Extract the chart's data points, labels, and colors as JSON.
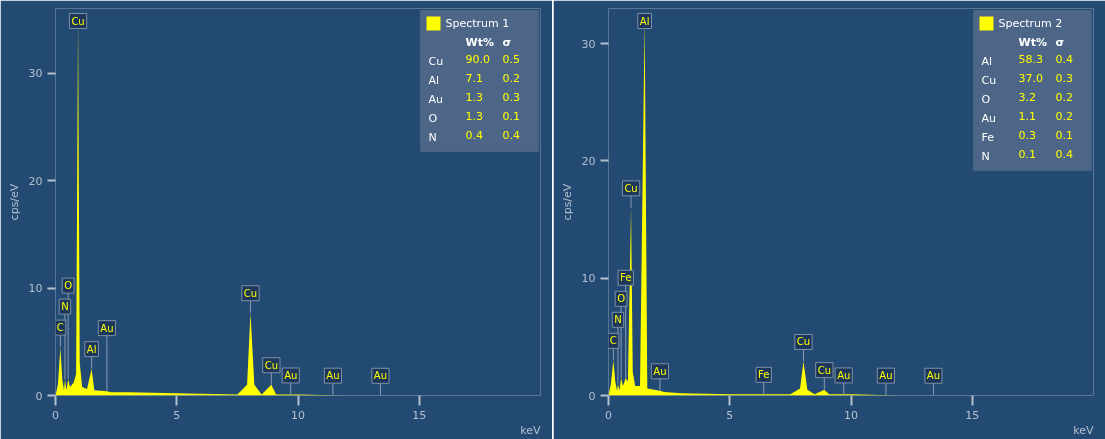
{
  "chart_data": [
    {
      "type": "area",
      "xlabel": "keV",
      "ylabel": "cps/eV",
      "xlim": [
        0,
        20
      ],
      "ylim": [
        0,
        36
      ],
      "xticks": [
        0,
        5,
        10,
        15
      ],
      "yticks": [
        0,
        10,
        20,
        30
      ],
      "grid": false,
      "legend": "top right",
      "series": [
        {
          "name": "Spectrum 1",
          "color": "#ffff00",
          "x": [
            0,
            0.1,
            0.2,
            0.28,
            0.35,
            0.39,
            0.45,
            0.52,
            0.6,
            0.75,
            0.85,
            0.93,
            1.0,
            1.1,
            1.3,
            1.49,
            1.6,
            2.12,
            2.3,
            3,
            5,
            7.5,
            7.9,
            8.04,
            8.2,
            8.5,
            8.9,
            9.1,
            10,
            12,
            15,
            20
          ],
          "values": [
            0,
            1,
            4.5,
            1.5,
            0.5,
            1.5,
            0.5,
            1.5,
            0.8,
            1.2,
            2,
            35,
            3,
            0.8,
            0.6,
            2.5,
            0.5,
            0.4,
            0.3,
            0.3,
            0.2,
            0.1,
            1,
            7.7,
            1,
            0.1,
            1,
            0.1,
            0.1,
            0,
            0,
            0
          ]
        }
      ],
      "annotations": [
        {
          "text": "C",
          "x": 0.2,
          "y": 4.5
        },
        {
          "text": "N",
          "x": 0.39,
          "y": 1.5
        },
        {
          "text": "O",
          "x": 0.52,
          "y": 1.5
        },
        {
          "text": "Cu",
          "x": 0.93,
          "y": 35
        },
        {
          "text": "Al",
          "x": 1.49,
          "y": 2.5
        },
        {
          "text": "Au",
          "x": 2.12,
          "y": 0.4
        },
        {
          "text": "Cu",
          "x": 8.04,
          "y": 7.7
        },
        {
          "text": "Cu",
          "x": 8.9,
          "y": 1
        },
        {
          "text": "Au",
          "x": 9.7,
          "y": 0.05
        },
        {
          "text": "Au",
          "x": 11.44,
          "y": 0.03
        },
        {
          "text": "Au",
          "x": 13.4,
          "y": 0.02
        },
        "Wt%",
        "σ",
        "Cu",
        "90.0",
        "0.5",
        "Al",
        "7.1",
        "0.2",
        "Au",
        "1.3",
        "0.3",
        "O",
        "1.3",
        "0.1",
        "N",
        "0.4",
        "0.4"
      ]
    },
    {
      "type": "area",
      "xlabel": "keV",
      "ylabel": "cps/eV",
      "xlim": [
        0,
        20
      ],
      "ylim": [
        0,
        33
      ],
      "xticks": [
        0,
        5,
        10,
        15
      ],
      "yticks": [
        0,
        10,
        20,
        30
      ],
      "grid": false,
      "legend": "top right",
      "series": [
        {
          "name": "Spectrum 2",
          "color": "#ffff00",
          "x": [
            0,
            0.1,
            0.2,
            0.28,
            0.35,
            0.39,
            0.45,
            0.52,
            0.6,
            0.71,
            0.8,
            0.93,
            1.0,
            1.1,
            1.3,
            1.49,
            1.6,
            2.12,
            2.3,
            3,
            5,
            6.4,
            7.5,
            7.9,
            8.04,
            8.2,
            8.5,
            8.9,
            9.1,
            10,
            12,
            15,
            20
          ],
          "values": [
            0,
            1,
            3,
            1.2,
            0.4,
            1,
            0.4,
            1.5,
            0.8,
            1.5,
            1.2,
            16,
            2,
            0.8,
            0.8,
            32,
            0.6,
            0.4,
            0.3,
            0.2,
            0.1,
            0.1,
            0.1,
            0.6,
            2.9,
            0.5,
            0.1,
            0.5,
            0.1,
            0.1,
            0,
            0,
            0
          ]
        }
      ],
      "annotations": [
        {
          "text": "C",
          "x": 0.2,
          "y": 3
        },
        {
          "text": "N",
          "x": 0.39,
          "y": 1
        },
        {
          "text": "O",
          "x": 0.52,
          "y": 1.5
        },
        {
          "text": "Fe",
          "x": 0.71,
          "y": 1.5
        },
        {
          "text": "Cu",
          "x": 0.93,
          "y": 16
        },
        {
          "text": "Al",
          "x": 1.49,
          "y": 32
        },
        {
          "text": "Au",
          "x": 2.12,
          "y": 0.4
        },
        {
          "text": "Fe",
          "x": 6.4,
          "y": 0.1
        },
        {
          "text": "Cu",
          "x": 8.04,
          "y": 2.9
        },
        {
          "text": "Cu",
          "x": 8.9,
          "y": 0.5
        },
        {
          "text": "Au",
          "x": 9.7,
          "y": 0.05
        },
        {
          "text": "Au",
          "x": 11.44,
          "y": 0.03
        },
        {
          "text": "Au",
          "x": 13.4,
          "y": 0.02
        },
        "Wt%",
        "σ",
        "Al",
        "58.3",
        "0.4",
        "Cu",
        "37.0",
        "0.3",
        "O",
        "3.2",
        "0.2",
        "Au",
        "1.1",
        "0.2",
        "Fe",
        "0.3",
        "0.1",
        "N",
        "0.1",
        "0.4"
      ]
    }
  ]
}
